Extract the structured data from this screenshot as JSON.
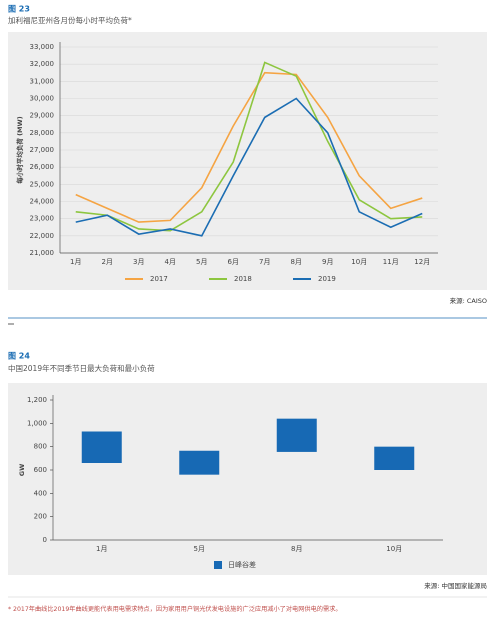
{
  "chart_data": [
    {
      "type": "line",
      "figure_label": "图 23",
      "title": "加利福尼亚州各月份每小时平均负荷*",
      "y_label": "每小时平均负荷 (MW)",
      "source": "来源: CAISO",
      "categories": [
        "1月",
        "2月",
        "3月",
        "4月",
        "5月",
        "6月",
        "7月",
        "8月",
        "9月",
        "10月",
        "11月",
        "12月"
      ],
      "series": [
        {
          "name": "2017",
          "color": "#f5a443",
          "values": [
            24400,
            23600,
            22800,
            22900,
            24800,
            28400,
            31500,
            31400,
            28900,
            25500,
            23600,
            24200
          ]
        },
        {
          "name": "2018",
          "color": "#8dc63f",
          "values": [
            23400,
            23200,
            22400,
            22300,
            23400,
            26300,
            32100,
            31300,
            27500,
            24100,
            23000,
            23100
          ]
        },
        {
          "name": "2019",
          "color": "#1b6db3",
          "values": [
            22800,
            23200,
            22100,
            22400,
            22000,
            25500,
            28900,
            30000,
            28000,
            23400,
            22500,
            23300
          ]
        }
      ],
      "ylim": [
        21000,
        33000
      ],
      "yticks": [
        {
          "value": 21000,
          "label": "21,000"
        },
        {
          "value": 22000,
          "label": "22,000"
        },
        {
          "value": 23000,
          "label": "23,000"
        },
        {
          "value": 24000,
          "label": "24,000"
        },
        {
          "value": 25000,
          "label": "25,000"
        },
        {
          "value": 26000,
          "label": "26,000"
        },
        {
          "value": 27000,
          "label": "27,000"
        },
        {
          "value": 28000,
          "label": "28,000"
        },
        {
          "value": 29000,
          "label": "29,000"
        },
        {
          "value": 30000,
          "label": "30,000"
        },
        {
          "value": 31000,
          "label": "31,000"
        },
        {
          "value": 32000,
          "label": "32,000"
        },
        {
          "value": 33000,
          "label": "33,000"
        }
      ],
      "grid": true
    },
    {
      "type": "floating_bar",
      "figure_label": "图 24",
      "title": "中国2019年不同季节日最大负荷和最小负荷",
      "y_label": "GW",
      "source": "来源: 中国国家能源局",
      "categories": [
        "1月",
        "5月",
        "8月",
        "10月"
      ],
      "series": [
        {
          "name": "日峰谷差",
          "color": "#1769b4",
          "low": [
            660,
            560,
            755,
            600
          ],
          "high": [
            930,
            765,
            1040,
            800
          ]
        }
      ],
      "ylim": [
        0,
        1200
      ],
      "yticks": [
        0,
        200,
        400,
        600,
        800,
        {
          "value": 1000,
          "label": "1,000"
        },
        {
          "value": 1200,
          "label": "1,200"
        }
      ],
      "grid": false
    }
  ],
  "footnote": "* 2017年曲线比2019年曲线更能代表用电需求特点，因为家用用户铜光伏发电设施的广泛应用减小了对电网供电的需求。"
}
